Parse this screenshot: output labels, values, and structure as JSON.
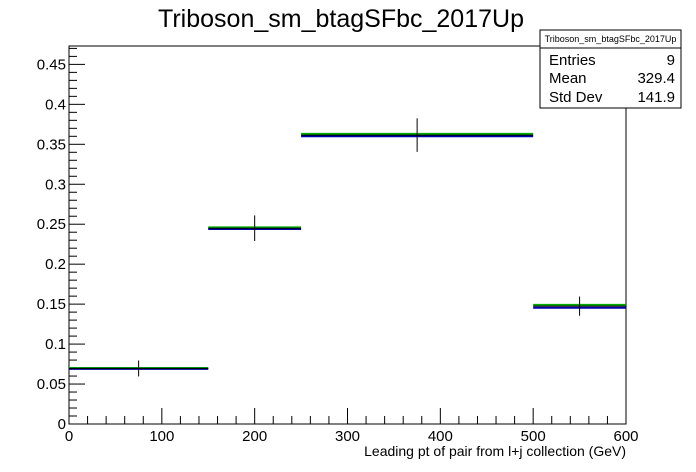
{
  "chart_data": {
    "type": "histogram",
    "title": "Triboson_sm_btagSFbc_2017Up",
    "xlabel": "Leading pt of pair from l+j collection (GeV)",
    "ylabel": "",
    "xlim": [
      0,
      600
    ],
    "ylim": [
      0,
      0.473
    ],
    "x_ticks": [
      "0",
      "100",
      "200",
      "300",
      "400",
      "500",
      "600"
    ],
    "y_ticks": [
      "0",
      "0.05",
      "0.1",
      "0.15",
      "0.2",
      "0.25",
      "0.3",
      "0.35",
      "0.4",
      "0.45"
    ],
    "grid": false,
    "bins": [
      {
        "low": 0,
        "high": 150,
        "center": 75,
        "value": 0.0695,
        "error": 0.01
      },
      {
        "low": 150,
        "high": 250,
        "center": 200,
        "value": 0.245,
        "error": 0.016
      },
      {
        "low": 250,
        "high": 500,
        "center": 375,
        "value": 0.3615,
        "error": 0.021
      },
      {
        "low": 500,
        "high": 600,
        "center": 550,
        "value": 0.1475,
        "error": 0.012
      }
    ],
    "series": [
      {
        "color": "#000000",
        "values": [
          0.0695,
          0.245,
          0.3615,
          0.1475
        ],
        "style": "points with error bars"
      },
      {
        "color": "#00aa00",
        "values": [
          0.07,
          0.246,
          0.363,
          0.149
        ],
        "style": "step"
      },
      {
        "color": "#0000aa",
        "values": [
          0.069,
          0.244,
          0.36,
          0.1455
        ],
        "style": "step"
      }
    ],
    "stats": {
      "title": "Triboson_sm_btagSFbc_2017Up",
      "rows": [
        {
          "label": "Entries",
          "value": "9"
        },
        {
          "label": "Mean",
          "value": "329.4"
        },
        {
          "label": "Std Dev",
          "value": "141.9"
        }
      ]
    },
    "legend_position": "top-right"
  }
}
